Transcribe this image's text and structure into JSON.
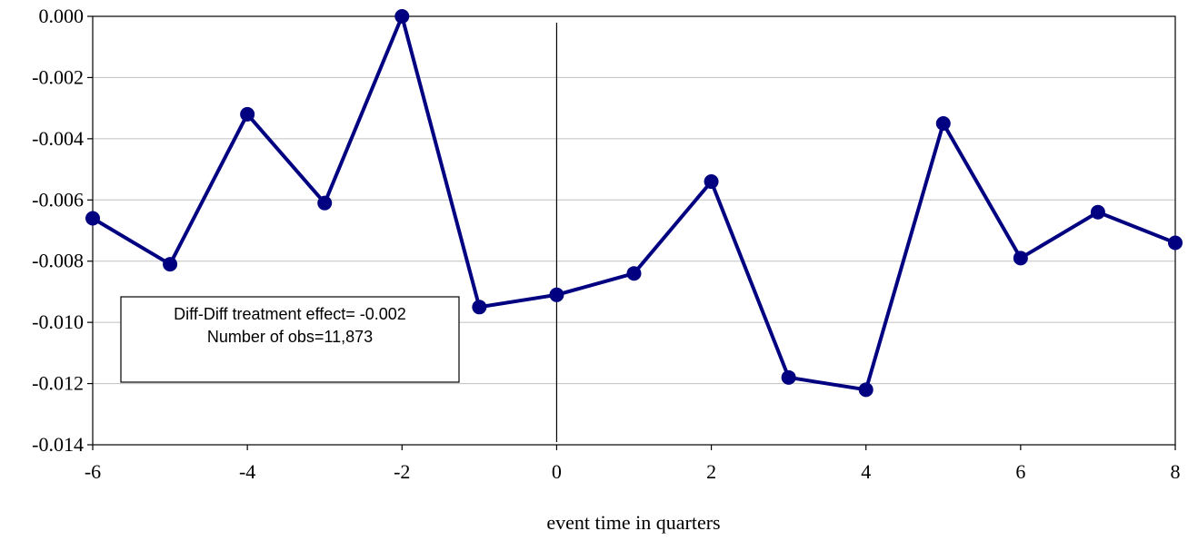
{
  "chart_data": {
    "type": "line",
    "title": "",
    "xlabel": "event time in quarters",
    "ylabel": "",
    "x": [
      -6,
      -5,
      -4,
      -3,
      -2,
      -1,
      0,
      1,
      2,
      3,
      4,
      5,
      6,
      7,
      8
    ],
    "series": [
      {
        "values": [
          -0.0066,
          -0.0081,
          -0.0032,
          -0.0061,
          0.0,
          -0.0095,
          -0.0091,
          -0.0084,
          -0.0054,
          -0.0118,
          -0.0122,
          -0.0035,
          -0.0079,
          -0.0064,
          -0.0074
        ]
      }
    ],
    "xlim": [
      -6,
      8
    ],
    "ylim": [
      -0.014,
      0.0
    ],
    "x_ticks": [
      "-6",
      "-4",
      "-2",
      "0",
      "2",
      "4",
      "6",
      "8"
    ],
    "y_ticks": [
      "0.000",
      "-0.002",
      "-0.004",
      "-0.006",
      "-0.008",
      "-0.010",
      "-0.012",
      "-0.014"
    ],
    "grid": "horizontal",
    "event_line_x": 0,
    "annotations": [
      "Diff-Diff treatment effect= -0.002",
      "Number of obs=11,873"
    ],
    "colors": {
      "series": "#000080",
      "grid": "#c0c0c0",
      "axis": "#000000"
    }
  }
}
